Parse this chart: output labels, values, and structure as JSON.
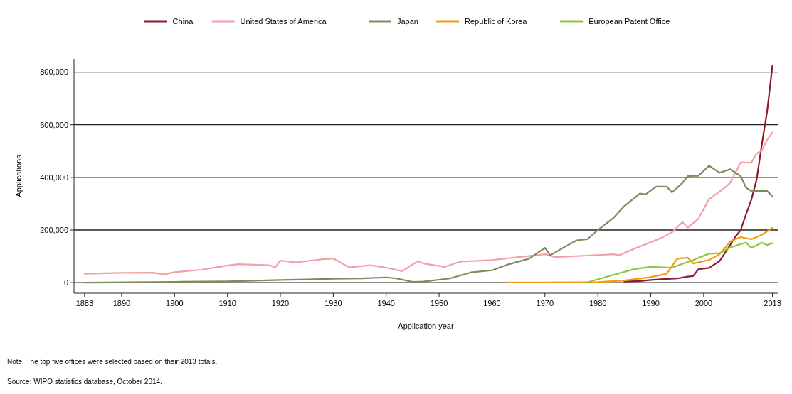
{
  "chart_data": {
    "type": "line",
    "xlabel": "Application year",
    "ylabel": "Applications",
    "xlim": [
      1881,
      2014
    ],
    "ylim": [
      -40000,
      850000
    ],
    "xticks": [
      1883,
      1890,
      1900,
      1910,
      1920,
      1930,
      1940,
      1950,
      1960,
      1970,
      1980,
      1990,
      2000,
      2013
    ],
    "yticks": [
      {
        "value": 0,
        "label": "0"
      },
      {
        "value": 200000,
        "label": "200,000"
      },
      {
        "value": 400000,
        "label": "400,000"
      },
      {
        "value": 600000,
        "label": "600,000"
      },
      {
        "value": 800000,
        "label": "800,000"
      }
    ],
    "grid": "y",
    "legend": "top",
    "line_style": "solid",
    "marker": "none",
    "annotations": [
      "Note: The top five offices were selected based on their 2013 totals.",
      "Source: WIPO statistics database, October 2014."
    ],
    "series": [
      {
        "name": "China",
        "color": "#8b1a2b",
        "x": [
          1985,
          1988,
          1990,
          1992,
          1995,
          1997,
          1998,
          1999,
          2001,
          2003,
          2005,
          2006,
          2007,
          2008,
          2009,
          2010,
          2011,
          2012,
          2013
        ],
        "values": [
          4000,
          6000,
          10000,
          13000,
          16000,
          23000,
          25000,
          51000,
          56000,
          82000,
          143000,
          175000,
          200000,
          260000,
          315000,
          391000,
          526000,
          652000,
          825000
        ]
      },
      {
        "name": "United States of America",
        "color": "#f2a0a8",
        "x": [
          1883,
          1890,
          1896,
          1898,
          1900,
          1905,
          1910,
          1912,
          1918,
          1919,
          1920,
          1923,
          1925,
          1928,
          1930,
          1933,
          1937,
          1940,
          1943,
          1946,
          1947,
          1951,
          1954,
          1960,
          1966,
          1970,
          1972,
          1978,
          1983,
          1984,
          1987,
          1992,
          1994,
          1996,
          1997,
          1999,
          2001,
          2004,
          2005,
          2007,
          2008,
          2009,
          2010,
          2011,
          2012,
          2013
        ],
        "values": [
          34000,
          37000,
          38000,
          31000,
          40000,
          49000,
          65000,
          70000,
          66000,
          57000,
          84000,
          77000,
          82000,
          89000,
          92000,
          58000,
          66000,
          57000,
          44000,
          82000,
          73000,
          60000,
          80000,
          86000,
          99000,
          108000,
          97000,
          103000,
          108000,
          104000,
          130000,
          170000,
          191000,
          230000,
          209000,
          243000,
          317000,
          361000,
          379000,
          457000,
          456000,
          456000,
          490000,
          503000,
          543000,
          571000
        ]
      },
      {
        "name": "Japan",
        "color": "#7d8c5a",
        "x": [
          1883,
          1900,
          1910,
          1920,
          1925,
          1930,
          1935,
          1940,
          1942,
          1945,
          1947,
          1952,
          1956,
          1960,
          1963,
          1967,
          1970,
          1971,
          1974,
          1976,
          1978,
          1980,
          1983,
          1985,
          1988,
          1989,
          1991,
          1993,
          1994,
          1996,
          1997,
          1999,
          2001,
          2003,
          2005,
          2007,
          2008,
          2009,
          2012,
          2013
        ],
        "values": [
          0,
          3000,
          5000,
          10000,
          12000,
          15000,
          16000,
          20000,
          16000,
          3000,
          4000,
          16000,
          39000,
          47000,
          69000,
          91000,
          132000,
          104000,
          139000,
          161000,
          165000,
          200000,
          247000,
          291000,
          339000,
          335000,
          365000,
          365000,
          343000,
          379000,
          405000,
          406000,
          444000,
          418000,
          431000,
          405000,
          361000,
          348000,
          348000,
          328000
        ]
      },
      {
        "name": "Republic of Korea",
        "color": "#f39c12",
        "x": [
          1963,
          1970,
          1980,
          1985,
          1990,
          1993,
          1995,
          1997,
          1998,
          2001,
          2003,
          2005,
          2007,
          2009,
          2011,
          2013
        ],
        "values": [
          1000,
          1000,
          2000,
          8000,
          21000,
          34000,
          91000,
          95000,
          73000,
          86000,
          108000,
          156000,
          173000,
          165000,
          182000,
          208000
        ]
      },
      {
        "name": "European Patent Office",
        "color": "#8dc63f",
        "x": [
          1978,
          1983,
          1987,
          1990,
          1994,
          1998,
          2001,
          2003,
          2005,
          2008,
          2009,
          2011,
          2012,
          2013
        ],
        "values": [
          1000,
          30000,
          52000,
          60000,
          57000,
          86000,
          110000,
          112000,
          134000,
          153000,
          132000,
          152000,
          143000,
          150000
        ]
      }
    ]
  }
}
